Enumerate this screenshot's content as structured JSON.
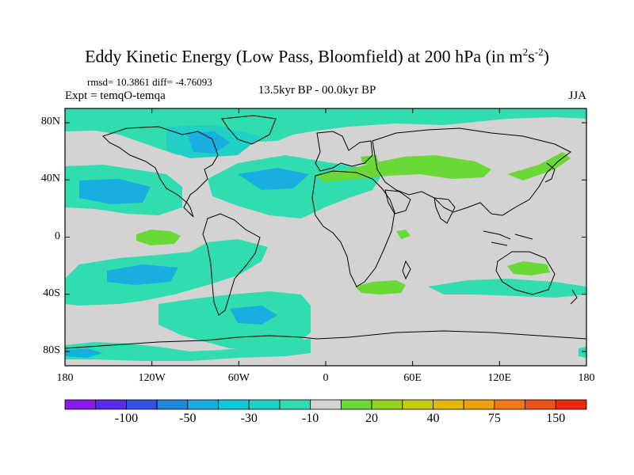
{
  "title": {
    "text_before": "Eddy Kinetic Energy (Low Pass, Bloomfield) at 200 hPa (in m",
    "sup1": "2",
    "text_mid": "s",
    "sup2": "-2",
    "text_after": ")"
  },
  "stats": "rmsd= 10.3861 diff= -4.76093",
  "expt": "Expt = temqO-temqa",
  "time_range": "13.5kyr BP - 00.0kyr BP",
  "season": "JJA",
  "map": {
    "projection": "cylindrical-equidistant",
    "lon_range": [
      -180,
      180
    ],
    "lat_range": [
      -90,
      90
    ],
    "background_color": "#d3d3d3",
    "y_ticks": [
      {
        "label": "80N",
        "lat": 80
      },
      {
        "label": "40N",
        "lat": 40
      },
      {
        "label": "0",
        "lat": 0
      },
      {
        "label": "40S",
        "lat": -40
      },
      {
        "label": "80S",
        "lat": -80
      }
    ],
    "x_ticks": [
      {
        "label": "180",
        "lon": -180
      },
      {
        "label": "120W",
        "lon": -120
      },
      {
        "label": "60W",
        "lon": -60
      },
      {
        "label": "0",
        "lon": 0
      },
      {
        "label": "60E",
        "lon": 60
      },
      {
        "label": "120E",
        "lon": 120
      },
      {
        "label": "180",
        "lon": 180
      }
    ]
  },
  "colorbar": {
    "colors": [
      "#8b1ce8",
      "#5b2ae6",
      "#2f52e0",
      "#1f86dc",
      "#18aee0",
      "#12c6dc",
      "#20d0c4",
      "#31dcae",
      "#d3d3d3",
      "#6ad836",
      "#96d21c",
      "#c2cc12",
      "#e2b80e",
      "#eda00e",
      "#f07a14",
      "#ee5018",
      "#e82a0e"
    ],
    "labels": [
      {
        "text": "-100",
        "boundary": 2
      },
      {
        "text": "-50",
        "boundary": 4
      },
      {
        "text": "-30",
        "boundary": 6
      },
      {
        "text": "-10",
        "boundary": 8
      },
      {
        "text": "20",
        "boundary": 10
      },
      {
        "text": "40",
        "boundary": 12
      },
      {
        "text": "75",
        "boundary": 14
      },
      {
        "text": "150",
        "boundary": 16
      }
    ]
  }
}
